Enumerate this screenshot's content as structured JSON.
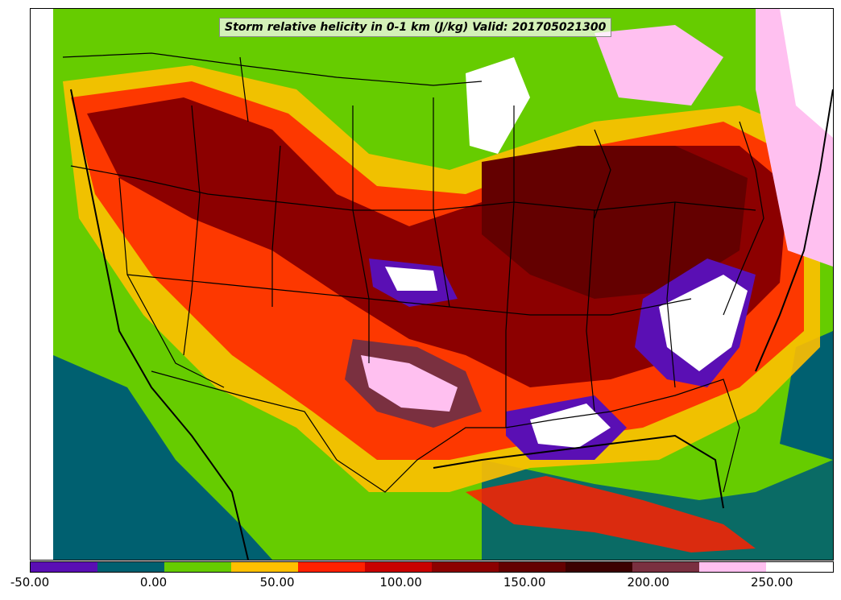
{
  "title": "Storm relative helicity in 0-1 km (J/kg) Valid: 201705021300",
  "colorbar": {
    "colors": [
      "#5a0fb4",
      "#006070",
      "#66cc00",
      "#ffc000",
      "#ff2000",
      "#c80000",
      "#8c0000",
      "#640000",
      "#3c0000",
      "#7a3040",
      "#ffc0f0",
      "#ffffff"
    ],
    "tick_labels": [
      "-50.00",
      "0.00",
      "50.00",
      "100.00",
      "150.00",
      "200.00",
      "250.00"
    ],
    "min": -50,
    "max": 275,
    "tick_values": [
      -50,
      0,
      50,
      100,
      150,
      200,
      250
    ]
  }
}
